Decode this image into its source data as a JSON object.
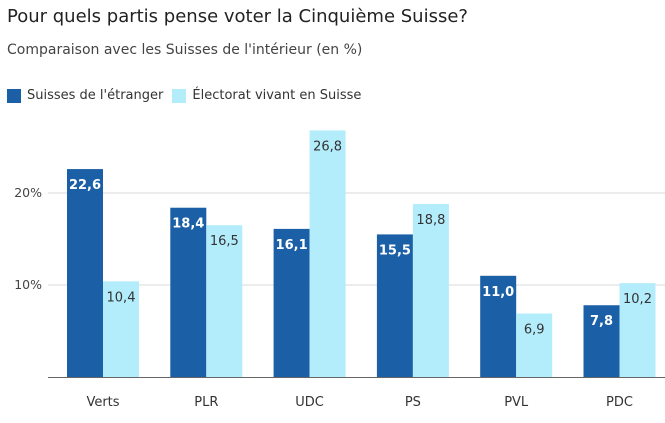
{
  "header": {
    "title": "Pour quels partis pense voter la Cinquième Suisse?",
    "subtitle": "Comparaison avec les Suisses de l'intérieur (en %)"
  },
  "legend": [
    {
      "label": "Suisses de l'étranger",
      "color": "#1b5fa6"
    },
    {
      "label": "Électorat vivant en Suisse",
      "color": "#b3ecfb"
    }
  ],
  "chart_data": {
    "type": "bar",
    "title": "Pour quels partis pense voter la Cinquième Suisse?",
    "subtitle": "Comparaison avec les Suisses de l'intérieur (en %)",
    "categories": [
      "Verts",
      "PLR",
      "UDC",
      "PS",
      "PVL",
      "PDC"
    ],
    "series": [
      {
        "name": "Suisses de l'étranger",
        "values": [
          22.6,
          18.4,
          16.1,
          15.5,
          11.0,
          7.8
        ],
        "labels": [
          "22,6",
          "18,4",
          "16,1",
          "15,5",
          "11,0",
          "7,8"
        ],
        "color": "#1b5fa6"
      },
      {
        "name": "Électorat vivant en Suisse",
        "values": [
          10.4,
          16.5,
          26.8,
          18.8,
          6.9,
          10.2
        ],
        "labels": [
          "10,4",
          "16,5",
          "26,8",
          "18,8",
          "6,9",
          "10,2"
        ],
        "color": "#b3ecfb"
      }
    ],
    "yticks": [
      {
        "value": 10,
        "label": "10%"
      },
      {
        "value": 20,
        "label": "20%"
      }
    ],
    "ylim": [
      0,
      30
    ],
    "xlabel": "",
    "ylabel": "",
    "grid": true,
    "legend_position": "top-left"
  }
}
